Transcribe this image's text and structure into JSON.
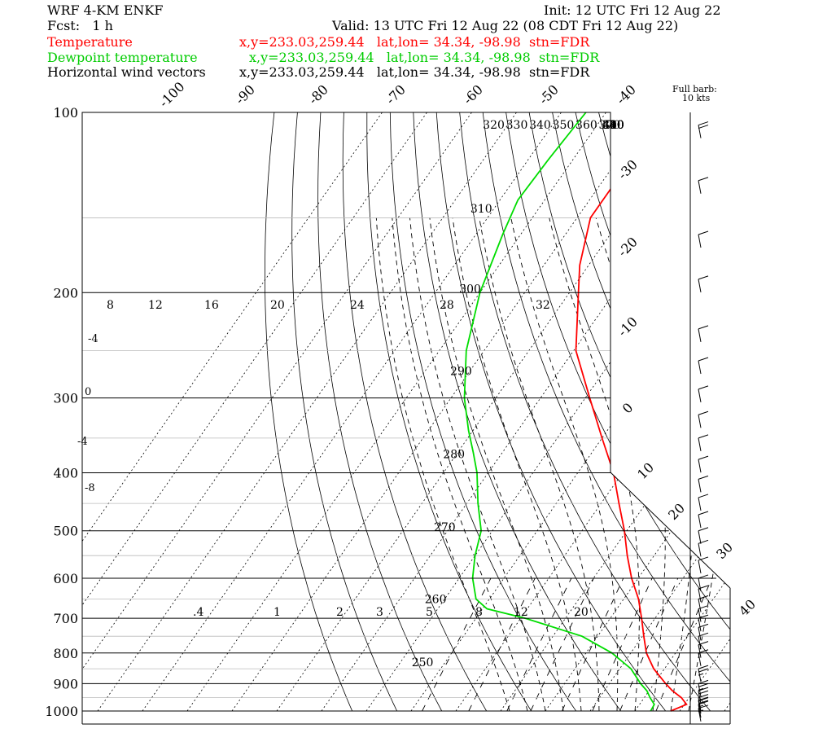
{
  "header": {
    "model": "WRF 4-KM ENKF",
    "init": "Init: 12 UTC Fri 12 Aug 22",
    "fcst": "Fcst:   1 h",
    "valid": "Valid: 13 UTC Fri 12 Aug 22 (08 CDT Fri 12 Aug 22)"
  },
  "legend": [
    {
      "name": "Temperature",
      "info": "x,y=233.03,259.44   lat,lon= 34.34, -98.98  stn=FDR",
      "color": "#ff0000"
    },
    {
      "name": "Dewpoint temperature",
      "info": "x,y=233.03,259.44   lat,lon= 34.34, -98.98  stn=FDR",
      "color": "#00dd00"
    },
    {
      "name": "Horizontal wind vectors",
      "info": "x,y=233.03,259.44   lat,lon= 34.34, -98.98  stn=FDR",
      "color": "#000000"
    }
  ],
  "barb_key": [
    "Full barb:",
    "10 kts"
  ],
  "chart_data": {
    "type": "skew-t log-p",
    "y_axis": {
      "ticks": [
        100,
        200,
        300,
        400,
        500,
        600,
        700,
        800,
        900,
        1000
      ]
    },
    "isotherm_labels": [
      "-100",
      "-90",
      "-80",
      "-70",
      "-60",
      "-50",
      "-40",
      "-30",
      "-20",
      "-10",
      "0",
      "10",
      "20",
      "30",
      "40"
    ],
    "theta_labels": [
      {
        "text": "320",
        "v": [
          100,
          320
        ]
      },
      {
        "text": "330",
        "v": [
          100,
          330
        ]
      },
      {
        "text": "340",
        "v": [
          100,
          340
        ]
      },
      {
        "text": "350",
        "v": [
          100,
          350
        ]
      },
      {
        "text": "360",
        "v": [
          100,
          360
        ]
      },
      {
        "text": "370",
        "v": [
          100,
          370
        ]
      },
      {
        "text": "380",
        "v": [
          100,
          380
        ]
      },
      {
        "text": "390",
        "v": [
          100,
          390
        ]
      },
      {
        "text": "400",
        "v": [
          100,
          400
        ]
      },
      {
        "text": "410",
        "v": [
          100,
          410
        ]
      },
      {
        "text": "420",
        "v": [
          100,
          420
        ]
      },
      {
        "text": "430",
        "v": [
          100,
          430
        ]
      },
      {
        "text": "440",
        "v": [
          100,
          440
        ]
      },
      {
        "text": "310",
        "v": [
          138,
          310
        ]
      },
      {
        "text": "300",
        "v": [
          188,
          300
        ]
      },
      {
        "text": "290",
        "v": [
          258,
          290
        ]
      },
      {
        "text": "280",
        "v": [
          355,
          280
        ]
      },
      {
        "text": "270",
        "v": [
          470,
          270
        ]
      },
      {
        "text": "260",
        "v": [
          620,
          260
        ]
      },
      {
        "text": "250",
        "v": [
          790,
          250
        ]
      }
    ],
    "thetae_labels": [
      "8",
      "12",
      "16",
      "20",
      "24",
      "28",
      "32"
    ],
    "moist_side_labels": [
      "-4",
      "0",
      "-4",
      "-8"
    ],
    "mixing_ratio_labels": [
      ".4",
      "1",
      "2",
      "3",
      "5",
      "8",
      "12",
      "20"
    ],
    "temperature": [
      {
        "p": 1000,
        "t": 28.0
      },
      {
        "p": 975,
        "t": 30.5
      },
      {
        "p": 950,
        "t": 28.3
      },
      {
        "p": 925,
        "t": 25.2
      },
      {
        "p": 900,
        "t": 22.6
      },
      {
        "p": 850,
        "t": 17.6
      },
      {
        "p": 800,
        "t": 13.5
      },
      {
        "p": 750,
        "t": 10.3
      },
      {
        "p": 700,
        "t": 7.0
      },
      {
        "p": 650,
        "t": 3.3
      },
      {
        "p": 600,
        "t": -1.5
      },
      {
        "p": 550,
        "t": -6.0
      },
      {
        "p": 500,
        "t": -10.5
      },
      {
        "p": 450,
        "t": -16.0
      },
      {
        "p": 400,
        "t": -22.0
      },
      {
        "p": 350,
        "t": -30.0
      },
      {
        "p": 300,
        "t": -39.0
      },
      {
        "p": 250,
        "t": -49.5
      },
      {
        "p": 200,
        "t": -58.0
      },
      {
        "p": 180,
        "t": -62.0
      },
      {
        "p": 150,
        "t": -67.0
      },
      {
        "p": 130,
        "t": -67.0
      },
      {
        "p": 115,
        "t": -70.5
      },
      {
        "p": 100,
        "t": -73.0
      }
    ],
    "dewpoint": [
      {
        "p": 1000,
        "t": 23.5
      },
      {
        "p": 975,
        "t": 23.3
      },
      {
        "p": 950,
        "t": 21.3
      },
      {
        "p": 925,
        "t": 19.5
      },
      {
        "p": 900,
        "t": 17.0
      },
      {
        "p": 850,
        "t": 12.5
      },
      {
        "p": 800,
        "t": 5.8
      },
      {
        "p": 750,
        "t": -3.5
      },
      {
        "p": 700,
        "t": -19.0
      },
      {
        "p": 675,
        "t": -29.0
      },
      {
        "p": 650,
        "t": -33.0
      },
      {
        "p": 600,
        "t": -37.0
      },
      {
        "p": 550,
        "t": -40.0
      },
      {
        "p": 500,
        "t": -42.5
      },
      {
        "p": 450,
        "t": -47.5
      },
      {
        "p": 400,
        "t": -52.5
      },
      {
        "p": 370,
        "t": -56.5
      },
      {
        "p": 340,
        "t": -61.0
      },
      {
        "p": 300,
        "t": -67.0
      },
      {
        "p": 250,
        "t": -74.0
      },
      {
        "p": 200,
        "t": -80.0
      },
      {
        "p": 160,
        "t": -84.0
      },
      {
        "p": 140,
        "t": -86.0
      },
      {
        "p": 120,
        "t": -85.5
      },
      {
        "p": 100,
        "t": -84.5
      }
    ],
    "wind_kts": [
      {
        "p": 990,
        "spd": 5
      },
      {
        "p": 975,
        "spd": 10
      },
      {
        "p": 960,
        "spd": 15
      },
      {
        "p": 950,
        "spd": 20
      },
      {
        "p": 925,
        "spd": 20
      },
      {
        "p": 900,
        "spd": 15
      },
      {
        "p": 850,
        "spd": 15
      },
      {
        "p": 800,
        "spd": 10
      },
      {
        "p": 775,
        "spd": 10
      },
      {
        "p": 750,
        "spd": 10
      },
      {
        "p": 725,
        "spd": 10
      },
      {
        "p": 700,
        "spd": 10
      },
      {
        "p": 675,
        "spd": 10
      },
      {
        "p": 650,
        "spd": 10
      },
      {
        "p": 625,
        "spd": 10
      },
      {
        "p": 600,
        "spd": 10
      },
      {
        "p": 560,
        "spd": 10
      },
      {
        "p": 525,
        "spd": 10
      },
      {
        "p": 500,
        "spd": 10
      },
      {
        "p": 470,
        "spd": 10
      },
      {
        "p": 440,
        "spd": 10
      },
      {
        "p": 410,
        "spd": 10
      },
      {
        "p": 380,
        "spd": 10
      },
      {
        "p": 350,
        "spd": 10
      },
      {
        "p": 320,
        "spd": 10
      },
      {
        "p": 290,
        "spd": 10
      },
      {
        "p": 260,
        "spd": 10
      },
      {
        "p": 230,
        "spd": 10
      },
      {
        "p": 190,
        "spd": 10
      },
      {
        "p": 160,
        "spd": 10
      },
      {
        "p": 130,
        "spd": 10
      },
      {
        "p": 105,
        "spd": 20
      }
    ]
  }
}
